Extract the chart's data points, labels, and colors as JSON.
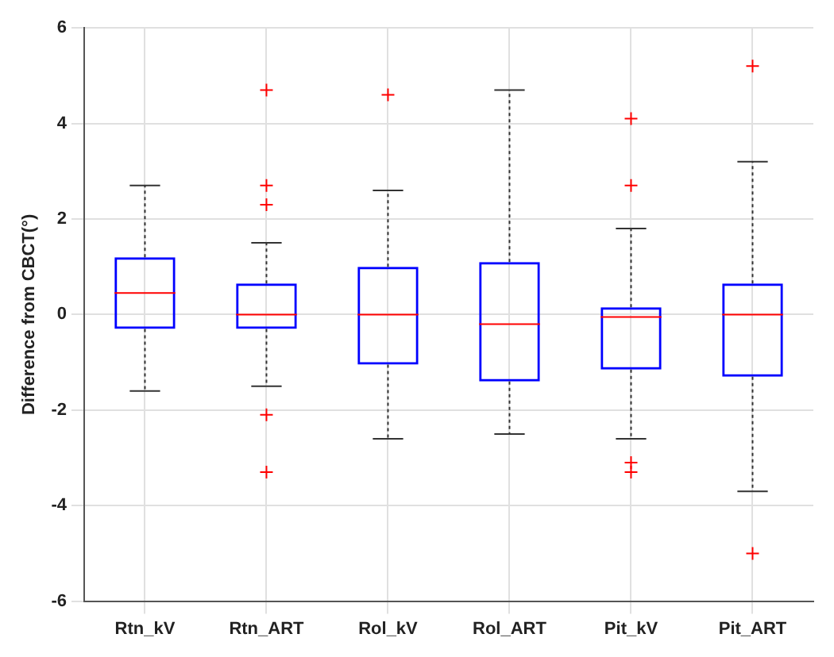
{
  "chart_data": {
    "type": "box",
    "ylabel": "Difference from CBCT(°)",
    "categories": [
      "Rtn_kV",
      "Rtn_ART",
      "Rol_kV",
      "Rol_ART",
      "Pit_kV",
      "Pit_ART"
    ],
    "color": "#0000ff",
    "boxes": [
      {
        "low": -1.6,
        "q1": -0.3,
        "median": 0.45,
        "q3": 1.2,
        "high": 2.7
      },
      {
        "low": -1.5,
        "q1": -0.3,
        "median": 0,
        "q3": 0.65,
        "high": 1.5,
        "outliers": [
          4.7,
          2.7,
          2.3,
          -2.1,
          -3.3
        ]
      },
      {
        "low": -2.6,
        "q1": -1.05,
        "median": 0,
        "q3": 1.0,
        "high": 2.6,
        "outliers": [
          4.6
        ]
      },
      {
        "low": -2.5,
        "q1": -1.4,
        "median": -0.2,
        "q3": 1.1,
        "high": 4.7
      },
      {
        "low": -2.6,
        "q1": -1.15,
        "median": -0.05,
        "q3": 0.15,
        "high": 1.8,
        "outliers": [
          4.1,
          2.7,
          -3.1,
          -3.3
        ]
      },
      {
        "low": -3.7,
        "q1": -1.3,
        "median": 0,
        "q3": 0.65,
        "high": 3.2,
        "outliers": [
          5.2,
          -5.0
        ]
      }
    ],
    "ylim": [
      -6,
      6
    ],
    "yticks": [
      -6,
      -4,
      -2,
      0,
      2,
      4,
      6
    ],
    "grid": true
  }
}
